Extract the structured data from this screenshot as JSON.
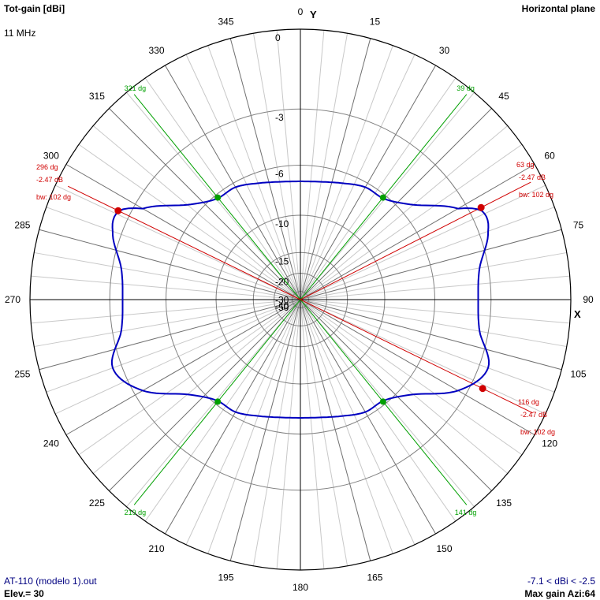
{
  "header": {
    "title": "Tot-gain [dBi]",
    "frequency": "11 MHz",
    "plane": "Horizontal plane"
  },
  "footer": {
    "file": "AT-110 (modelo 1).out",
    "elevation": "Elev.= 30",
    "range": "-7.1 < dBi < -2.5",
    "max_gain": "Max gain Azi:64"
  },
  "axes": {
    "y": "Y",
    "x": "X"
  },
  "colors": {
    "pattern": "#0000c0",
    "beamwidth": "#d00000",
    "null_lines": "#00a000",
    "grid": "#808080",
    "axis": "#000000"
  },
  "chart_data": {
    "type": "polar",
    "angle_ticks": [
      "0",
      "15",
      "30",
      "45",
      "60",
      "75",
      "90",
      "105",
      "120",
      "135",
      "150",
      "165",
      "180",
      "195",
      "210",
      "225",
      "240",
      "255",
      "270",
      "285",
      "300",
      "315",
      "330",
      "345"
    ],
    "radial_ticks": [
      0,
      -3,
      -6,
      -10,
      -15,
      -20,
      -30,
      -40,
      -50
    ],
    "radial_tick_labels": [
      "0",
      "-3",
      "-6",
      "-10",
      "-15",
      "-20",
      "-30",
      "-40",
      "-50"
    ],
    "azimuth_deg": [
      0,
      10,
      20,
      30,
      40,
      50,
      60,
      64,
      70,
      80,
      90,
      100,
      110,
      120,
      130,
      140,
      150,
      160,
      170,
      180,
      190,
      200,
      210,
      220,
      230,
      240,
      250,
      260,
      270,
      280,
      290,
      296,
      300,
      310,
      320,
      330,
      340,
      350
    ],
    "gain_dbi": [
      -7.1,
      -7.0,
      -6.7,
      -6.3,
      -6.2,
      -5.2,
      -3.4,
      -2.5,
      -2.6,
      -3.4,
      -3.6,
      -3.4,
      -2.6,
      -3.4,
      -5.2,
      -6.2,
      -6.3,
      -6.7,
      -7.0,
      -7.1,
      -7.0,
      -6.7,
      -6.3,
      -6.2,
      -5.2,
      -3.4,
      -2.6,
      -3.4,
      -3.6,
      -3.4,
      -2.6,
      -2.5,
      -3.4,
      -5.2,
      -6.2,
      -6.3,
      -6.7,
      -7.0
    ],
    "beamwidth_markers": [
      {
        "angle": 63,
        "angle_label": "63 dg",
        "gain": -2.47,
        "gain_label": "-2.47 dB",
        "bw_label": "bw: 102 dg"
      },
      {
        "angle": 116,
        "angle_label": "116 dg",
        "gain": -2.47,
        "gain_label": "-2.47 dB",
        "bw_label": "bw: 102 dg"
      },
      {
        "angle": 296,
        "angle_label": "296 dg",
        "gain": -2.47,
        "gain_label": "-2.47 dB",
        "bw_label": "bw: 102 dg"
      }
    ],
    "null_markers": [
      {
        "angle": 39,
        "label": "39 dg",
        "gain": -6.2
      },
      {
        "angle": 141,
        "label": "141 dg",
        "gain": -6.2
      },
      {
        "angle": 219,
        "label": "219 dg",
        "gain": -6.2
      },
      {
        "angle": 321,
        "label": "321 dg",
        "gain": -6.2
      }
    ]
  }
}
